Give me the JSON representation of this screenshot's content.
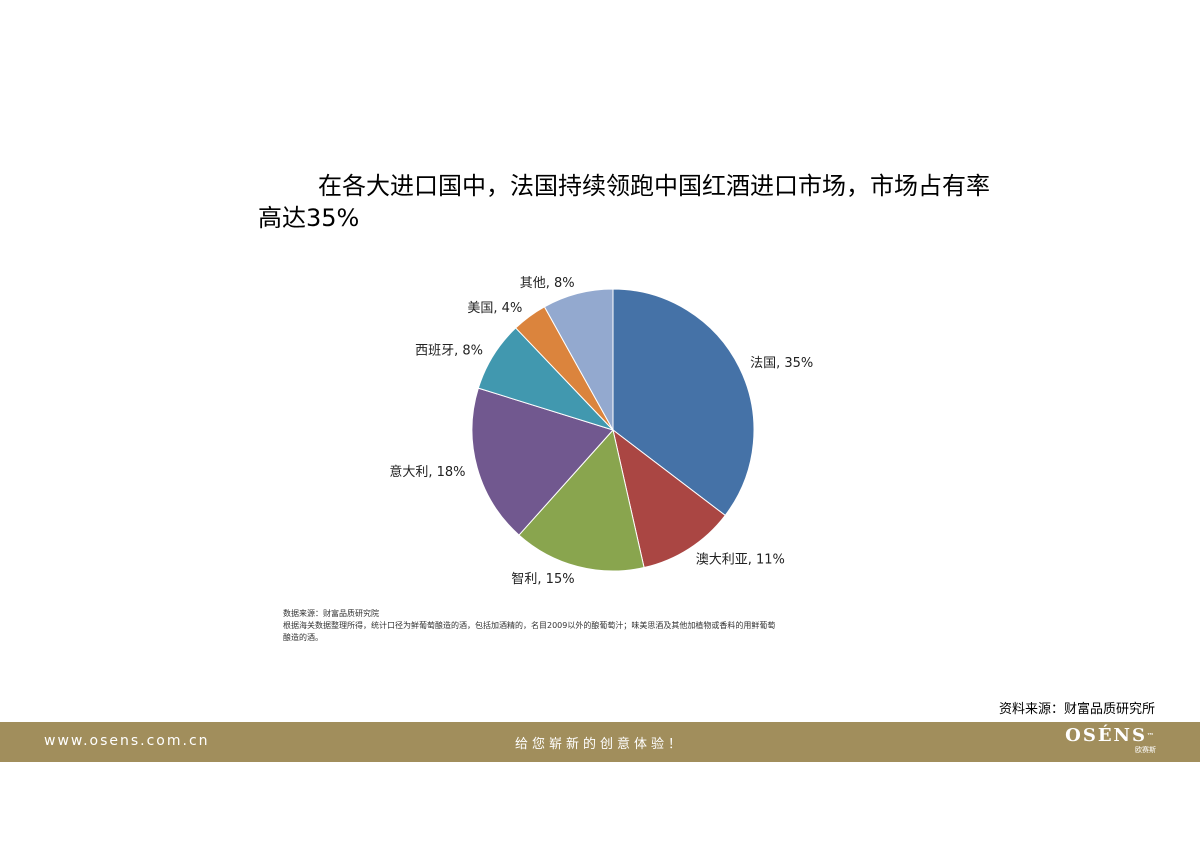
{
  "title": "在各大进口国中，法国持续领跑中国红酒进口市场，市场占有率高达35%",
  "chart_data": {
    "type": "pie",
    "slices": [
      {
        "name": "法国",
        "value": 35,
        "label": "法国, 35%",
        "color": "#4572a7"
      },
      {
        "name": "澳大利亚",
        "value": 11,
        "label": "澳大利亚, 11%",
        "color": "#aa4643"
      },
      {
        "name": "智利",
        "value": 15,
        "label": "智利, 15%",
        "color": "#89a54e"
      },
      {
        "name": "意大利",
        "value": 18,
        "label": "意大利, 18%",
        "color": "#71588f"
      },
      {
        "name": "西班牙",
        "value": 8,
        "label": "西班牙, 8%",
        "color": "#4198af"
      },
      {
        "name": "美国",
        "value": 4,
        "label": "美国, 4%",
        "color": "#db843d"
      },
      {
        "name": "其他",
        "value": 8,
        "label": "其他, 8%",
        "color": "#93a9cf"
      }
    ]
  },
  "chart_note": {
    "line1": "数据来源：财富品质研究院",
    "line2": "根据海关数据整理所得，统计口径为鲜葡萄酿造的酒，包括加酒精的，名目2009以外的酿葡萄汁；味美思酒及其他加植物或香料的用鲜葡萄",
    "line3": "酿造的酒。"
  },
  "source": "资料来源：财富品质研究所",
  "footer": {
    "url": "www.osens.com.cn",
    "slogan": "给您崭新的创意体验！",
    "logo_brand": "OSÉNS",
    "logo_tm": "™",
    "logo_sub": "欧赛斯"
  },
  "colors": {
    "footer_bg": "#a18e5c"
  }
}
